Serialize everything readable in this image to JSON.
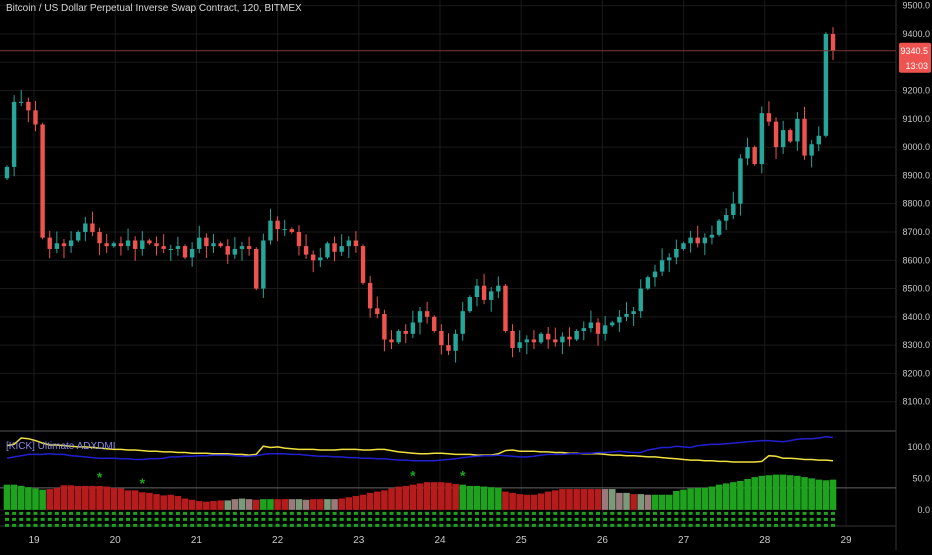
{
  "header": {
    "title": "Bitcoin / US Dollar Perpetual Inverse Swap Contract, 120, BITMEX"
  },
  "price_badge": {
    "value": "9340.5",
    "time": "13:03",
    "color": "#ef5350"
  },
  "indicator": {
    "title": "[KICK] Ultimate ADXDMI"
  },
  "colors": {
    "background": "#000000",
    "up": "#26a69a",
    "down": "#ef5350",
    "adx": "#f0e040",
    "dmi": "#2020d0",
    "star": "#1fa31f",
    "grid": "#1a1a1a"
  },
  "chart_data": [
    {
      "type": "candlestick",
      "xlabel": "",
      "ylabel": "",
      "ylim": [
        8000,
        9520
      ],
      "x_tick_labels": [
        "19",
        "20",
        "21",
        "22",
        "23",
        "24",
        "25",
        "26",
        "27",
        "28",
        "29"
      ],
      "y_tick_labels": [
        "8100.0",
        "8200.0",
        "8300.0",
        "8400.0",
        "8500.0",
        "8600.0",
        "8700.0",
        "8800.0",
        "8900.0",
        "9000.0",
        "9100.0",
        "9200.0",
        "9300.0",
        "9400.0",
        "9500.0"
      ],
      "last_price": 9340.5,
      "close_series": [
        8930,
        9160,
        9160,
        9130,
        9080,
        8680,
        8640,
        8660,
        8650,
        8670,
        8700,
        8730,
        8700,
        8660,
        8650,
        8660,
        8650,
        8670,
        8640,
        8670,
        8660,
        8650,
        8640,
        8640,
        8650,
        8610,
        8640,
        8680,
        8650,
        8660,
        8650,
        8620,
        8640,
        8650,
        8640,
        8500,
        8670,
        8740,
        8710,
        8710,
        8700,
        8650,
        8620,
        8600,
        8610,
        8660,
        8630,
        8650,
        8670,
        8650,
        8520,
        8430,
        8410,
        8320,
        8310,
        8350,
        8340,
        8380,
        8420,
        8400,
        8350,
        8300,
        8280,
        8340,
        8420,
        8470,
        8510,
        8460,
        8490,
        8510,
        8350,
        8290,
        8310,
        8320,
        8310,
        8340,
        8320,
        8310,
        8330,
        8320,
        8350,
        8360,
        8380,
        8340,
        8370,
        8380,
        8400,
        8410,
        8420,
        8500,
        8540,
        8560,
        8600,
        8610,
        8640,
        8660,
        8680,
        8660,
        8680,
        8690,
        8740,
        8760,
        8800,
        8960,
        9000,
        8940,
        9120,
        9090,
        9000,
        9060,
        9020,
        9100,
        8970,
        9010,
        9040,
        9400,
        9340.5
      ]
    },
    {
      "type": "line",
      "title": "[KICK] Ultimate ADXDMI",
      "ylim": [
        -24,
        122
      ],
      "y_tick_labels": [
        "0.0",
        "50.0",
        "100.0"
      ],
      "series": [
        {
          "color": "#f0e040",
          "values": [
            102,
            104,
            114,
            113,
            110,
            106,
            103,
            103,
            102,
            101,
            100,
            100,
            99,
            98,
            97,
            96,
            96,
            95,
            95,
            94,
            93,
            93,
            92,
            92,
            91,
            91,
            90,
            90,
            90,
            89,
            89,
            89,
            88,
            88,
            87,
            88,
            101,
            99,
            100,
            98,
            97,
            96,
            96,
            96,
            95,
            95,
            95,
            96,
            96,
            96,
            95,
            95,
            96,
            96,
            94,
            92,
            91,
            90,
            89,
            89,
            90,
            90,
            89,
            88,
            88,
            88,
            87,
            87,
            87,
            89,
            94,
            95,
            93,
            93,
            93,
            92,
            92,
            91,
            91,
            90,
            90,
            89,
            89,
            89,
            88,
            87,
            87,
            86,
            86,
            85,
            84,
            84,
            83,
            82,
            81,
            80,
            79,
            79,
            78,
            78,
            77,
            77,
            76,
            76,
            76,
            76,
            77,
            86,
            85,
            82,
            82,
            81,
            80,
            80,
            79,
            79,
            78
          ]
        },
        {
          "color": "#2020d0",
          "values": [
            82,
            84,
            86,
            88,
            88,
            88,
            89,
            88,
            88,
            86,
            85,
            84,
            83,
            82,
            82,
            82,
            81,
            81,
            80,
            80,
            81,
            81,
            82,
            84,
            84,
            85,
            85,
            86,
            86,
            87,
            87,
            87,
            86,
            85,
            85,
            86,
            88,
            89,
            89,
            89,
            88,
            88,
            87,
            86,
            85,
            85,
            84,
            84,
            83,
            83,
            82,
            82,
            81,
            81,
            80,
            79,
            79,
            78,
            78,
            78,
            78,
            79,
            80,
            81,
            83,
            84,
            85,
            86,
            86,
            87,
            86,
            85,
            84,
            84,
            85,
            87,
            88,
            88,
            88,
            89,
            89,
            90,
            90,
            91,
            91,
            92,
            93,
            92,
            91,
            91,
            95,
            97,
            99,
            99,
            101,
            100,
            99,
            102,
            103,
            104,
            104,
            105,
            106,
            107,
            108,
            109,
            110,
            110,
            109,
            108,
            110,
            112,
            113,
            113,
            114,
            116,
            115
          ]
        }
      ]
    },
    {
      "type": "bar",
      "values": [
        40,
        40,
        38,
        36,
        34,
        32,
        33,
        35,
        39,
        39,
        38,
        38,
        38,
        38,
        37,
        35,
        34,
        31,
        31,
        28,
        27,
        25,
        23,
        24,
        22,
        18,
        16,
        14,
        13,
        14,
        15,
        15,
        17,
        18,
        17,
        16,
        17,
        17,
        17,
        17,
        17,
        17,
        16,
        17,
        17,
        17,
        17,
        18,
        20,
        22,
        24,
        27,
        29,
        31,
        34,
        37,
        38,
        40,
        42,
        44,
        44,
        44,
        43,
        41,
        40,
        38,
        38,
        37,
        36,
        35,
        29,
        27,
        25,
        24,
        24,
        26,
        29,
        31,
        33,
        33,
        33,
        33,
        33,
        33,
        33,
        33,
        27,
        27,
        25,
        25,
        24,
        24,
        24,
        24,
        30,
        32,
        34,
        35,
        35,
        37,
        40,
        42,
        44,
        46,
        49,
        52,
        54,
        55,
        56,
        56,
        55,
        54,
        52,
        50,
        48,
        47,
        48
      ],
      "colors": [
        "#1fa31f",
        "#1fa31f",
        "#1fa31f",
        "#1fa31f",
        "#1fa31f",
        "#1fa31f",
        "#b71c1c",
        "#b71c1c",
        "#b71c1c",
        "#b71c1c",
        "#b71c1c",
        "#b71c1c",
        "#b71c1c",
        "#b71c1c",
        "#b71c1c",
        "#b71c1c",
        "#b71c1c",
        "#b71c1c",
        "#b71c1c",
        "#b71c1c",
        "#b71c1c",
        "#b71c1c",
        "#b71c1c",
        "#b71c1c",
        "#b71c1c",
        "#b71c1c",
        "#b71c1c",
        "#b71c1c",
        "#b71c1c",
        "#b71c1c",
        "#b71c1c",
        "#7a9a7a",
        "#9a7a7a",
        "#7a9a7a",
        "#9a7a7a",
        "#b71c1c",
        "#1fa31f",
        "#1fa31f",
        "#b71c1c",
        "#b71c1c",
        "#9a7a7a",
        "#7a9a7a",
        "#9a7a7a",
        "#b71c1c",
        "#b71c1c",
        "#7a9a7a",
        "#9a7a7a",
        "#b71c1c",
        "#b71c1c",
        "#b71c1c",
        "#b71c1c",
        "#b71c1c",
        "#b71c1c",
        "#b71c1c",
        "#b71c1c",
        "#b71c1c",
        "#b71c1c",
        "#b71c1c",
        "#b71c1c",
        "#b71c1c",
        "#b71c1c",
        "#b71c1c",
        "#b71c1c",
        "#b71c1c",
        "#1fa31f",
        "#1fa31f",
        "#1fa31f",
        "#1fa31f",
        "#1fa31f",
        "#1fa31f",
        "#b71c1c",
        "#b71c1c",
        "#b71c1c",
        "#b71c1c",
        "#b71c1c",
        "#b71c1c",
        "#b71c1c",
        "#b71c1c",
        "#b71c1c",
        "#b71c1c",
        "#b71c1c",
        "#b71c1c",
        "#b71c1c",
        "#b71c1c",
        "#9a7a7a",
        "#7a9a7a",
        "#9a7a7a",
        "#7a9a7a",
        "#b71c1c",
        "#7a9a7a",
        "#9a7a7a",
        "#1fa31f",
        "#1fa31f",
        "#1fa31f",
        "#1fa31f",
        "#1fa31f",
        "#1fa31f",
        "#1fa31f",
        "#1fa31f",
        "#1fa31f",
        "#1fa31f",
        "#1fa31f",
        "#1fa31f",
        "#1fa31f",
        "#1fa31f",
        "#1fa31f",
        "#1fa31f",
        "#1fa31f",
        "#1fa31f",
        "#1fa31f",
        "#1fa31f",
        "#1fa31f",
        "#1fa31f",
        "#1fa31f",
        "#1fa31f",
        "#1fa31f",
        "#1fa31f"
      ],
      "reference_level": 35
    }
  ],
  "star_marks": {
    "symbol": "*",
    "bar_indices": [
      13,
      19,
      57,
      64
    ]
  }
}
